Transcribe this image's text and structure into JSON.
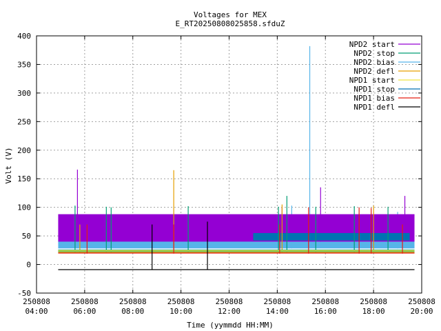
{
  "chart_data": {
    "type": "line",
    "title": "Voltages for MEX",
    "subtitle": "E_RT20250808025858.sfduZ",
    "xlabel": "Time (yymmdd HH:MM)",
    "ylabel": "Volt (V)",
    "xlim": [
      4,
      20
    ],
    "ylim": [
      -50,
      400
    ],
    "yticks": [
      -50,
      0,
      50,
      100,
      150,
      200,
      250,
      300,
      350,
      400
    ],
    "xticks": [
      {
        "x": 4,
        "date": "250808",
        "time": "04:00"
      },
      {
        "x": 6,
        "date": "250808",
        "time": "06:00"
      },
      {
        "x": 8,
        "date": "250808",
        "time": "08:00"
      },
      {
        "x": 10,
        "date": "250808",
        "time": "10:00"
      },
      {
        "x": 12,
        "date": "250808",
        "time": "12:00"
      },
      {
        "x": 14,
        "date": "250808",
        "time": "14:00"
      },
      {
        "x": 16,
        "date": "250808",
        "time": "16:00"
      },
      {
        "x": 18,
        "date": "250808",
        "time": "18:00"
      },
      {
        "x": 20,
        "date": "250808",
        "time": "20:00"
      }
    ],
    "grid": true,
    "legend": "top-right",
    "series": [
      {
        "name": "NPD2 start",
        "color": "#9400d3",
        "band": [
          40,
          88
        ],
        "spikes": [
          [
            5.7,
            166
          ],
          [
            15.8,
            135
          ],
          [
            19.3,
            120
          ],
          [
            14.2,
            100
          ]
        ]
      },
      {
        "name": "NPD2 stop",
        "color": "#009e73",
        "band": [
          22,
          26
        ],
        "spikes": [
          [
            5.6,
            103
          ],
          [
            6.9,
            101
          ],
          [
            7.1,
            100
          ],
          [
            10.3,
            102
          ],
          [
            14.05,
            101
          ],
          [
            14.4,
            120
          ],
          [
            15.6,
            101
          ],
          [
            17.2,
            102
          ],
          [
            18.6,
            101
          ]
        ]
      },
      {
        "name": "NPD2 bias",
        "color": "#56b4e9",
        "band": [
          28,
          42
        ],
        "spikes": [
          [
            15.35,
            382
          ],
          [
            14.6,
            103
          ],
          [
            19.0,
            92
          ]
        ]
      },
      {
        "name": "NPD2 defl",
        "color": "#e69f00",
        "band": [
          20,
          22
        ],
        "spikes": [
          [
            9.7,
            165
          ],
          [
            5.8,
            70
          ],
          [
            14.2,
            105
          ],
          [
            18.0,
            103
          ]
        ]
      },
      {
        "name": "NPD1 start",
        "color": "#f0e442",
        "band": [
          23,
          25
        ],
        "spikes": []
      },
      {
        "name": "NPD1 stop",
        "color": "#0072b2",
        "band": [
          42,
          55
        ],
        "spikes": [],
        "x_range": [
          13,
          19.5
        ]
      },
      {
        "name": "NPD1 bias",
        "color": "#e51e10",
        "band": [
          19,
          20
        ],
        "spikes": [
          [
            6.1,
            70
          ],
          [
            9.7,
            70
          ],
          [
            14.1,
            70
          ],
          [
            15.3,
            100
          ],
          [
            17.4,
            100
          ],
          [
            17.9,
            99
          ],
          [
            19.2,
            70
          ]
        ]
      },
      {
        "name": "NPD1 defl",
        "color": "#000000",
        "band": [
          -9,
          -9
        ],
        "spikes": [
          [
            8.8,
            70
          ],
          [
            11.1,
            75
          ]
        ]
      }
    ]
  }
}
